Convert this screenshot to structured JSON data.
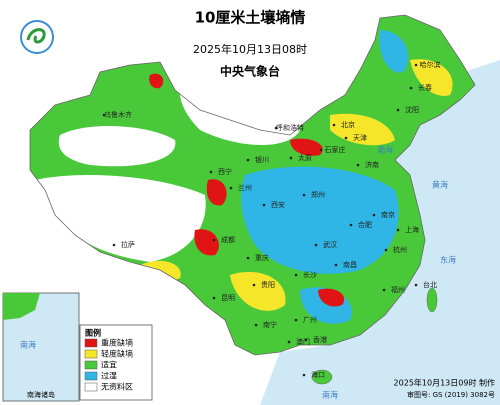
{
  "header": {
    "title": "10厘米土壤墒情",
    "datetime": "2025年10月13日08时",
    "issuer": "中央气象台"
  },
  "legend": {
    "title": "图例",
    "items": [
      {
        "label": "重度缺墒",
        "color": "#e01414"
      },
      {
        "label": "轻度缺墒",
        "color": "#f5e62a"
      },
      {
        "label": "适宜",
        "color": "#49c83a"
      },
      {
        "label": "过湿",
        "color": "#2fb6e6"
      },
      {
        "label": "无资料区",
        "color": "#ffffff"
      }
    ]
  },
  "inset": {
    "label": "南海诸岛",
    "sea": "南海"
  },
  "map_labels": [
    "乌鲁木齐",
    "拉萨",
    "西宁",
    "兰州",
    "银川",
    "呼和浩特",
    "北京",
    "天津",
    "石家庄",
    "太原",
    "济南",
    "沈阳",
    "长春",
    "哈尔滨",
    "郑州",
    "西安",
    "成都",
    "重庆",
    "武汉",
    "合肥",
    "南京",
    "上海",
    "杭州",
    "长沙",
    "南昌",
    "贵阳",
    "昆明",
    "福州",
    "南宁",
    "广州",
    "台北",
    "香港",
    "澳门",
    "海口",
    "渤海",
    "黄海",
    "东海",
    "南海"
  ],
  "footer": {
    "made": "2025年10月13日09时 制作",
    "approval": "审图号: GS (2019) 3082号"
  }
}
